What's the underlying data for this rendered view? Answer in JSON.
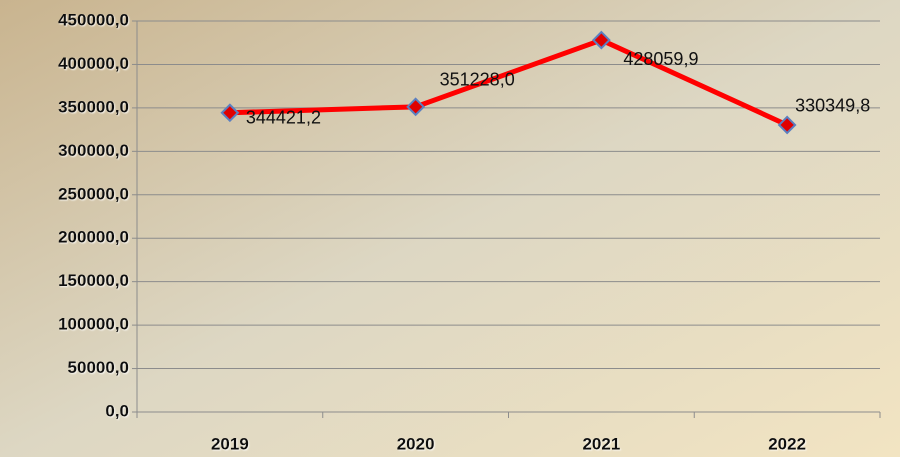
{
  "chart_data": {
    "type": "line",
    "categories": [
      "2019",
      "2020",
      "2021",
      "2022"
    ],
    "values": [
      344421.2,
      351228.0,
      428059.9,
      330349.8
    ],
    "value_labels": [
      "344421,2",
      "351228,0",
      "428059,9",
      "330349,8"
    ],
    "color": "#ff0000",
    "marker_color": "#e00000",
    "marker_edge_color": "#5b7fc0",
    "ylim": [
      0,
      450000
    ],
    "yticks": [
      {
        "value": 0,
        "label": "0,0"
      },
      {
        "value": 50000,
        "label": "50000,0"
      },
      {
        "value": 100000,
        "label": "100000,0"
      },
      {
        "value": 150000,
        "label": "150000,0"
      },
      {
        "value": 200000,
        "label": "200000,0"
      },
      {
        "value": 250000,
        "label": "250000,0"
      },
      {
        "value": 300000,
        "label": "300000,0"
      },
      {
        "value": 350000,
        "label": "350000,0"
      },
      {
        "value": 400000,
        "label": "400000,0"
      },
      {
        "value": 450000,
        "label": "450000,0"
      }
    ],
    "grid": true
  }
}
